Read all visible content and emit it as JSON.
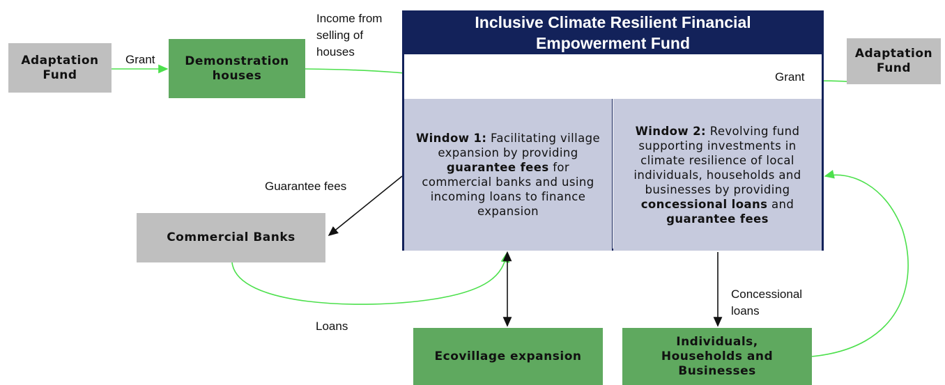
{
  "left_fund": {
    "label": "Adaptation Fund"
  },
  "left_grant": "Grant",
  "demo_houses": {
    "label": "Demonstration houses"
  },
  "income_label": "Income from selling of houses",
  "fund": {
    "title": "Inclusive Climate Resilient Financial Empowerment Fund",
    "window1": [
      {
        "text": "Window 1:",
        "bold": true
      },
      {
        "text": " Facilitating village expansion by providing ",
        "bold": false
      },
      {
        "text": "guarantee fees",
        "bold": true
      },
      {
        "text": " for commercial banks and using incoming loans to finance expansion",
        "bold": false
      }
    ],
    "window2": [
      {
        "text": "Window 2:",
        "bold": true
      },
      {
        "text": " Revolving fund supporting investments in climate resilience of local individuals, households and businesses by providing ",
        "bold": false
      },
      {
        "text": "concessional loans",
        "bold": true
      },
      {
        "text": " and ",
        "bold": false
      },
      {
        "text": "guarantee fees",
        "bold": true
      }
    ]
  },
  "right_fund": {
    "label": "Adaptation Fund"
  },
  "right_grant": "Grant",
  "guarantee_label": "Guarantee fees",
  "commercial_banks": {
    "label": "Commercial Banks"
  },
  "loans_label": "Loans",
  "ecovillage": {
    "label": "Ecovillage expansion"
  },
  "concessional_label": "Concessional loans",
  "individuals": {
    "label": "Individuals, Households and Businesses"
  }
}
